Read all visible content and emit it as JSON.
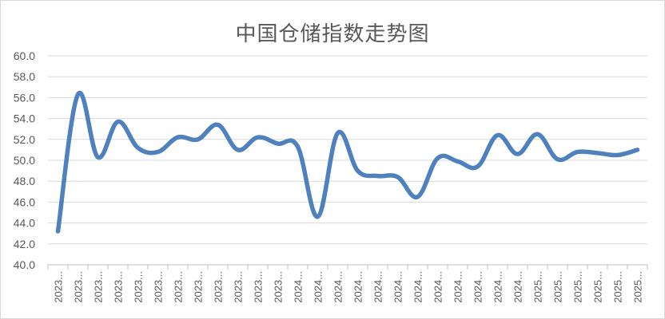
{
  "chart_data": {
    "type": "line",
    "title": "中国仓储指数走势图",
    "xlabel": "",
    "ylabel": "",
    "ylim": [
      40.0,
      60.0
    ],
    "yticks": [
      "40.0",
      "42.0",
      "44.0",
      "46.0",
      "48.0",
      "50.0",
      "52.0",
      "54.0",
      "56.0",
      "58.0",
      "60.0"
    ],
    "categories": [
      "2023...",
      "2023...",
      "2023...",
      "2023...",
      "2023...",
      "2023...",
      "2023...",
      "2023...",
      "2023...",
      "2023...",
      "2023...",
      "2023...",
      "2024...",
      "2024...",
      "2024...",
      "2024...",
      "2024...",
      "2024...",
      "2024...",
      "2024...",
      "2024...",
      "2024...",
      "2024...",
      "2024...",
      "2025...",
      "2025...",
      "2025...",
      "2025...",
      "2025...",
      "2025..."
    ],
    "series": [
      {
        "values": [
          43.2,
          56.3,
          50.3,
          53.7,
          51.2,
          50.8,
          52.2,
          52.0,
          53.4,
          51.0,
          52.2,
          51.6,
          51.3,
          44.6,
          52.6,
          49.0,
          48.5,
          48.4,
          46.5,
          50.2,
          49.9,
          49.4,
          52.4,
          50.6,
          52.5,
          50.1,
          50.8,
          50.7,
          50.5,
          51.0
        ]
      }
    ],
    "grid": true,
    "legend": "none",
    "line_color": "#4e81bd"
  }
}
